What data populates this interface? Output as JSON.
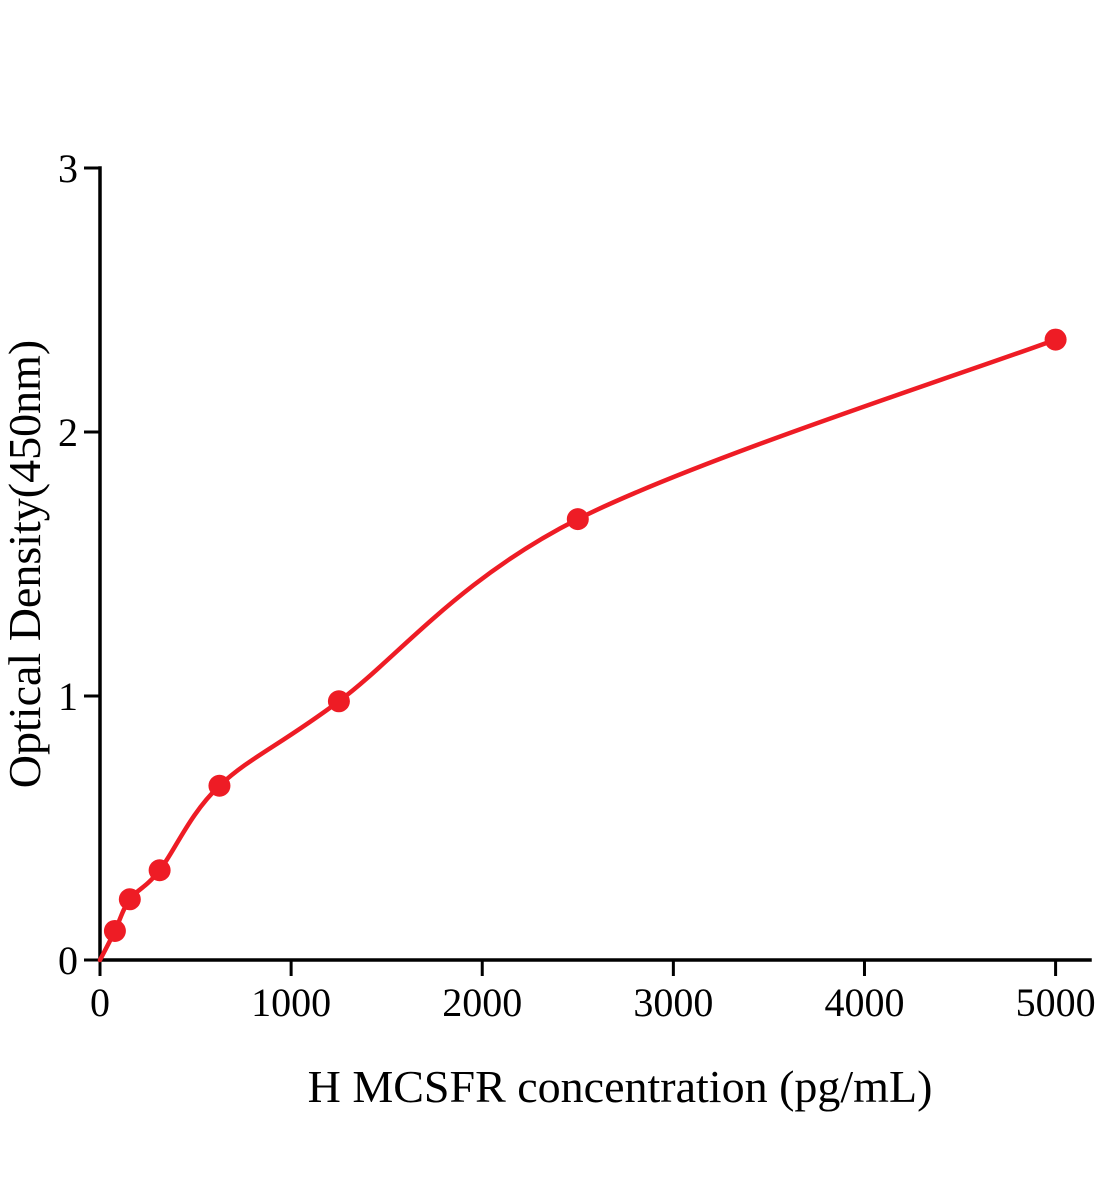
{
  "chart_data": {
    "type": "scatter",
    "title": "",
    "xlabel": "H MCSFR concentration (pg/mL)",
    "ylabel": "Optical Density(450nm)",
    "xlim": [
      0,
      5180
    ],
    "ylim": [
      0,
      3
    ],
    "xticks": [
      0,
      1000,
      2000,
      3000,
      4000,
      5000
    ],
    "yticks": [
      0,
      1,
      2,
      3
    ],
    "grid": false,
    "legend": "none",
    "curve_start": {
      "x": 0,
      "y": 0
    },
    "points": [
      {
        "x": 78,
        "y": 0.11
      },
      {
        "x": 156,
        "y": 0.23
      },
      {
        "x": 312,
        "y": 0.34
      },
      {
        "x": 625,
        "y": 0.66
      },
      {
        "x": 1250,
        "y": 0.98
      },
      {
        "x": 2500,
        "y": 1.67
      },
      {
        "x": 5000,
        "y": 2.35
      }
    ],
    "colors": {
      "curve": "#ee1c25",
      "point": "#ee1c25",
      "axis": "#000000"
    }
  }
}
